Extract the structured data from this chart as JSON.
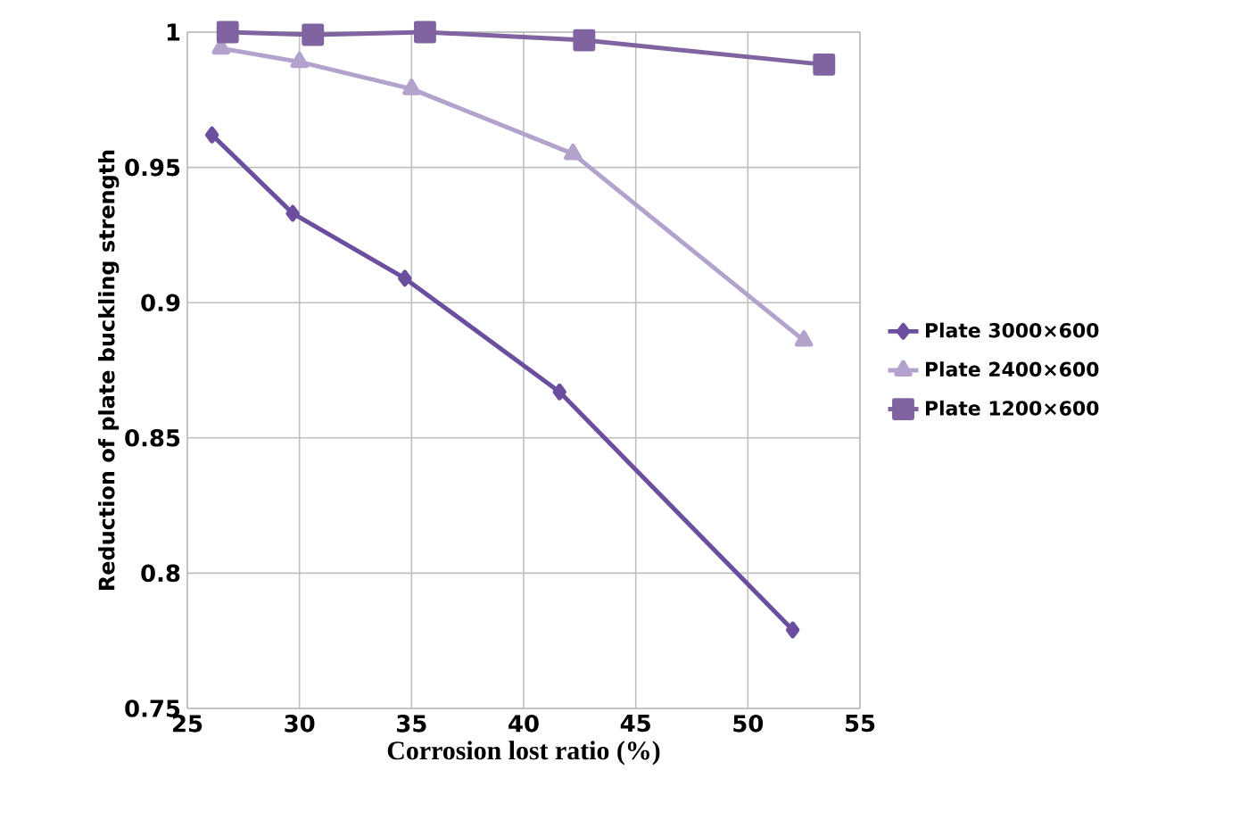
{
  "chart_data": {
    "type": "line",
    "xlabel": "Corrosion lost ratio (%)",
    "ylabel": "Reduction of plate buckling strength",
    "xlim": [
      25,
      55
    ],
    "xticks": [
      25,
      30,
      35,
      40,
      45,
      50,
      55
    ],
    "ylim": [
      0.75,
      1
    ],
    "yticks": [
      0.75,
      0.8,
      0.85,
      0.9,
      0.95,
      1
    ],
    "grid": true,
    "legend": "right",
    "series": [
      {
        "name": "Plate 3000×600",
        "color": "#6b4f9e",
        "marker": "diamond",
        "x": [
          26.1,
          29.7,
          34.7,
          41.6,
          52.0
        ],
        "values": [
          0.962,
          0.933,
          0.909,
          0.867,
          0.779
        ]
      },
      {
        "name": "Plate 2400×600",
        "color": "#b3a3cc",
        "marker": "triangle",
        "x": [
          26.5,
          30.0,
          35.0,
          42.2,
          52.5
        ],
        "values": [
          0.994,
          0.989,
          0.979,
          0.955,
          0.886
        ]
      },
      {
        "name": "Plate 1200×600",
        "color": "#8064a2",
        "marker": "square",
        "x": [
          26.8,
          30.6,
          35.6,
          42.7,
          53.4
        ],
        "values": [
          1.0,
          0.999,
          1.0,
          0.997,
          0.988
        ]
      }
    ]
  }
}
